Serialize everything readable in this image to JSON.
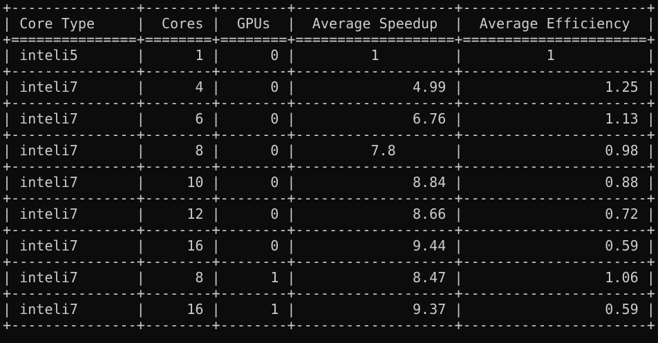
{
  "terminal": {
    "border_top": "+---------------+--------+--------+-------------------+----------------------+",
    "header": "| Core Type     |  Cores |  GPUs  |  Average Speedup  |  Average Efficiency  |",
    "border_header": "+===============+========+========+===================+======================+",
    "border_row": "+---------------+--------+--------+-------------------+----------------------+",
    "rows": [
      "| inteli5       |      1 |      0 |         1         |          1           |",
      "| inteli7       |      4 |      0 |              4.99 |                 1.25 |",
      "| inteli7       |      6 |      0 |              6.76 |                 1.13 |",
      "| inteli7       |      8 |      0 |         7.8       |                 0.98 |",
      "| inteli7       |     10 |      0 |              8.84 |                 0.88 |",
      "| inteli7       |     12 |      0 |              8.66 |                 0.72 |",
      "| inteli7       |     16 |      0 |              9.44 |                 0.59 |",
      "| inteli7       |      8 |      1 |              8.47 |                 1.06 |",
      "| inteli7       |     16 |      1 |              9.37 |                 0.59 |"
    ]
  }
}
